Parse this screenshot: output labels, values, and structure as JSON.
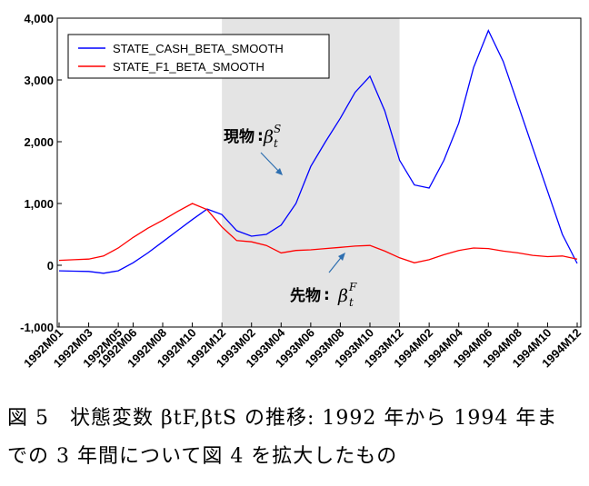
{
  "chart_data": {
    "type": "line",
    "ylim": [
      -1000,
      4000
    ],
    "yticks": [
      {
        "value": 4000,
        "label": "4,000"
      },
      {
        "value": 3000,
        "label": "3,000"
      },
      {
        "value": 2000,
        "label": "2,000"
      },
      {
        "value": 1000,
        "label": "1,000"
      },
      {
        "value": 0,
        "label": "0"
      },
      {
        "value": -1000,
        "label": "-1,000"
      }
    ],
    "xticks": [
      "1992M01",
      "1992M03",
      "1992M05",
      "1992M06",
      "1992M08",
      "1992M10",
      "1992M12",
      "1993M02",
      "1993M04",
      "1993M06",
      "1993M08",
      "1993M10",
      "1993M12",
      "1994M02",
      "1994M04",
      "1994M06",
      "1994M08",
      "1994M10",
      "1994M12"
    ],
    "grid": false,
    "legend_position": "top-left",
    "shaded_region": {
      "from": "1992M12",
      "to": "1993M12",
      "color": "#e4e4e4"
    },
    "series": [
      {
        "name": "STATE_CASH_BETA_SMOOTH",
        "color": "#0000ff",
        "points": [
          [
            "1992M01",
            -90
          ],
          [
            "1992M02",
            -95
          ],
          [
            "1992M03",
            -100
          ],
          [
            "1992M04",
            -130
          ],
          [
            "1992M05",
            -90
          ],
          [
            "1992M06",
            40
          ],
          [
            "1992M07",
            200
          ],
          [
            "1992M08",
            380
          ],
          [
            "1992M09",
            560
          ],
          [
            "1992M10",
            740
          ],
          [
            "1992M11",
            910
          ],
          [
            "1992M12",
            820
          ],
          [
            "1993M01",
            560
          ],
          [
            "1993M02",
            470
          ],
          [
            "1993M03",
            500
          ],
          [
            "1993M04",
            650
          ],
          [
            "1993M05",
            1000
          ],
          [
            "1993M06",
            1600
          ],
          [
            "1993M07",
            2000
          ],
          [
            "1993M08",
            2380
          ],
          [
            "1993M09",
            2800
          ],
          [
            "1993M10",
            3060
          ],
          [
            "1993M11",
            2500
          ],
          [
            "1993M12",
            1700
          ],
          [
            "1994M01",
            1300
          ],
          [
            "1994M02",
            1250
          ],
          [
            "1994M03",
            1700
          ],
          [
            "1994M04",
            2300
          ],
          [
            "1994M05",
            3200
          ],
          [
            "1994M06",
            3800
          ],
          [
            "1994M07",
            3300
          ],
          [
            "1994M08",
            2600
          ],
          [
            "1994M09",
            1900
          ],
          [
            "1994M10",
            1200
          ],
          [
            "1994M11",
            500
          ],
          [
            "1994M12",
            30
          ]
        ]
      },
      {
        "name": "STATE_F1_BETA_SMOOTH",
        "color": "#ff0000",
        "points": [
          [
            "1992M01",
            80
          ],
          [
            "1992M02",
            90
          ],
          [
            "1992M03",
            100
          ],
          [
            "1992M04",
            150
          ],
          [
            "1992M05",
            280
          ],
          [
            "1992M06",
            450
          ],
          [
            "1992M07",
            600
          ],
          [
            "1992M08",
            730
          ],
          [
            "1992M09",
            870
          ],
          [
            "1992M10",
            1000
          ],
          [
            "1992M11",
            900
          ],
          [
            "1992M12",
            620
          ],
          [
            "1993M01",
            400
          ],
          [
            "1993M02",
            380
          ],
          [
            "1993M03",
            320
          ],
          [
            "1993M04",
            200
          ],
          [
            "1993M05",
            240
          ],
          [
            "1993M06",
            250
          ],
          [
            "1993M07",
            270
          ],
          [
            "1993M08",
            290
          ],
          [
            "1993M09",
            310
          ],
          [
            "1993M10",
            320
          ],
          [
            "1993M11",
            230
          ],
          [
            "1993M12",
            120
          ],
          [
            "1994M01",
            40
          ],
          [
            "1994M02",
            90
          ],
          [
            "1994M03",
            170
          ],
          [
            "1994M04",
            240
          ],
          [
            "1994M05",
            280
          ],
          [
            "1994M06",
            270
          ],
          [
            "1994M07",
            230
          ],
          [
            "1994M08",
            200
          ],
          [
            "1994M09",
            160
          ],
          [
            "1994M10",
            140
          ],
          [
            "1994M11",
            150
          ],
          [
            "1994M12",
            100
          ]
        ]
      }
    ],
    "annotations": [
      {
        "text": "現物",
        "colon": ":",
        "symbol": "β",
        "superscript": "S",
        "subscript": "t"
      },
      {
        "text": "先物",
        "colon": ":",
        "symbol": "β",
        "superscript": "F",
        "subscript": "t"
      }
    ]
  },
  "caption": {
    "line1": "図 5　状態変数 βtF,βtS の推移: 1992 年から 1994 年ま",
    "line2": "での 3 年間について図 4 を拡大したもの"
  }
}
